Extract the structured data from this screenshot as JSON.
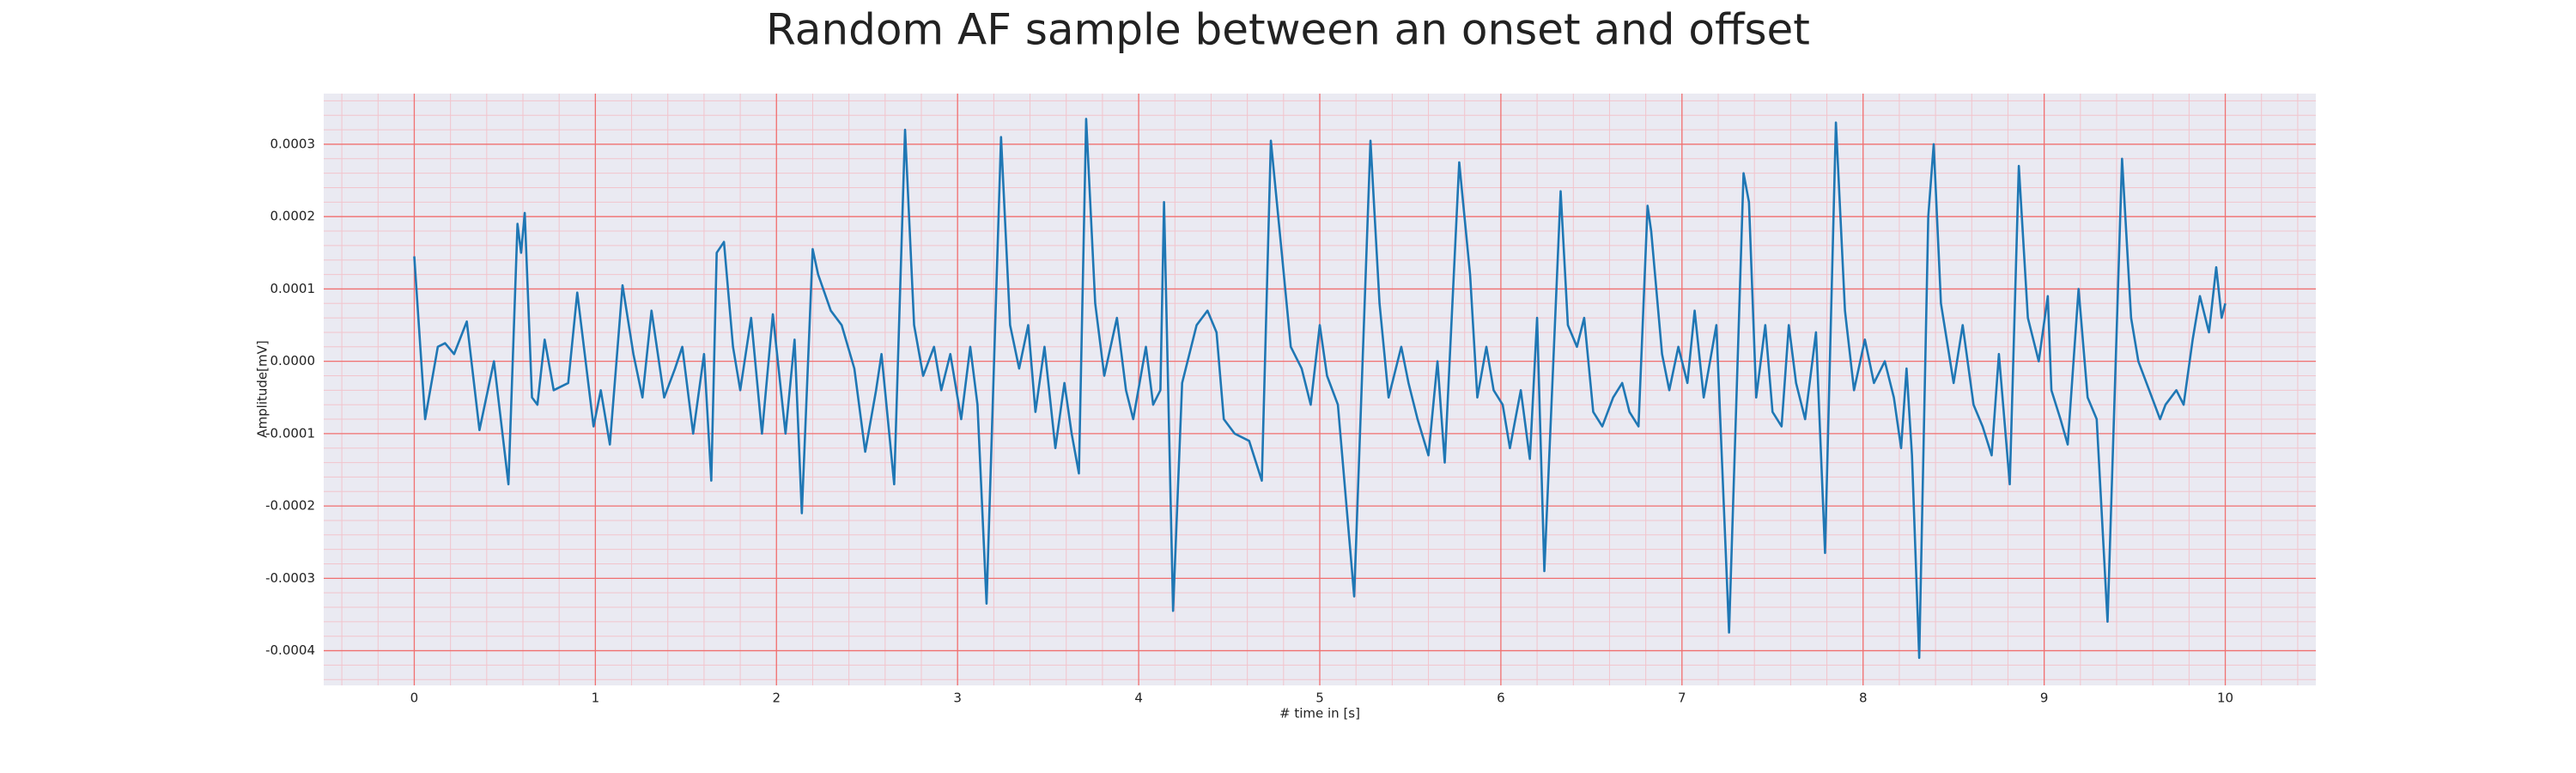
{
  "chart_data": {
    "type": "line",
    "title": "Random AF sample between an onset and offset",
    "xlabel": "# time in [s]",
    "ylabel": "Amplitude[mV]",
    "color": "#1f77b4",
    "background": "#eaeaf2",
    "grid": true,
    "grid_color": "#f07070",
    "minor_grid": true,
    "minor_grid_color": "#f2c4cc",
    "minor_divisions": 5,
    "xlim": [
      -0.5,
      10.5
    ],
    "ylim": [
      -0.000448,
      0.00037
    ],
    "xticks": [
      0,
      1,
      2,
      3,
      4,
      5,
      6,
      7,
      8,
      9,
      10
    ],
    "yticks": [
      -0.0004,
      -0.0003,
      -0.0002,
      -0.0001,
      {
        "value": 0,
        "label": "0.0000"
      },
      0.0001,
      0.0002,
      0.0003
    ],
    "x": [
      0.0,
      0.06,
      0.13,
      0.17,
      0.22,
      0.29,
      0.36,
      0.44,
      0.52,
      0.57,
      0.59,
      0.61,
      0.65,
      0.68,
      0.72,
      0.77,
      0.85,
      0.9,
      0.99,
      1.03,
      1.08,
      1.15,
      1.21,
      1.26,
      1.31,
      1.38,
      1.44,
      1.48,
      1.54,
      1.6,
      1.64,
      1.67,
      1.71,
      1.76,
      1.8,
      1.86,
      1.92,
      1.98,
      2.05,
      2.1,
      2.14,
      2.2,
      2.23,
      2.3,
      2.36,
      2.43,
      2.49,
      2.55,
      2.58,
      2.65,
      2.71,
      2.76,
      2.81,
      2.87,
      2.91,
      2.96,
      3.02,
      3.07,
      3.11,
      3.16,
      3.24,
      3.29,
      3.34,
      3.39,
      3.43,
      3.48,
      3.54,
      3.59,
      3.63,
      3.67,
      3.71,
      3.76,
      3.81,
      3.88,
      3.93,
      3.97,
      4.04,
      4.08,
      4.12,
      4.14,
      4.19,
      4.24,
      4.32,
      4.38,
      4.43,
      4.47,
      4.53,
      4.61,
      4.68,
      4.73,
      4.79,
      4.84,
      4.9,
      4.95,
      5.0,
      5.04,
      5.1,
      5.19,
      5.28,
      5.33,
      5.38,
      5.45,
      5.49,
      5.54,
      5.6,
      5.65,
      5.69,
      5.77,
      5.83,
      5.87,
      5.92,
      5.96,
      6.01,
      6.05,
      6.11,
      6.16,
      6.2,
      6.24,
      6.33,
      6.37,
      6.42,
      6.46,
      6.51,
      6.56,
      6.62,
      6.67,
      6.71,
      6.76,
      6.81,
      6.83,
      6.89,
      6.93,
      6.98,
      7.03,
      7.07,
      7.12,
      7.19,
      7.26,
      7.34,
      7.37,
      7.41,
      7.46,
      7.5,
      7.55,
      7.59,
      7.63,
      7.68,
      7.74,
      7.79,
      7.85,
      7.9,
      7.95,
      8.01,
      8.06,
      8.12,
      8.17,
      8.21,
      8.24,
      8.27,
      8.31,
      8.36,
      8.39,
      8.43,
      8.5,
      8.55,
      8.61,
      8.66,
      8.71,
      8.75,
      8.81,
      8.86,
      8.91,
      8.97,
      9.02,
      9.04,
      9.09,
      9.13,
      9.19,
      9.24,
      9.29,
      9.35,
      9.43,
      9.48,
      9.52,
      9.58,
      9.64,
      9.67,
      9.73,
      9.77,
      9.82,
      9.86,
      9.91,
      9.95,
      9.98,
      10.0
    ],
    "values": [
      0.000145,
      -8e-05,
      2e-05,
      2.5e-05,
      1e-05,
      5.5e-05,
      -9.5e-05,
      0,
      -0.00017,
      0.00019,
      0.00015,
      0.000205,
      -5e-05,
      -6e-05,
      3e-05,
      -4e-05,
      -3e-05,
      9.5e-05,
      -9e-05,
      -4e-05,
      -0.000115,
      0.000105,
      1e-05,
      -5e-05,
      7e-05,
      -5e-05,
      -1e-05,
      2e-05,
      -0.0001,
      1e-05,
      -0.000165,
      0.00015,
      0.000165,
      2e-05,
      -4e-05,
      6e-05,
      -0.0001,
      6.5e-05,
      -0.0001,
      3e-05,
      -0.00021,
      0.000155,
      0.00012,
      7e-05,
      5e-05,
      -1e-05,
      -0.000125,
      -4e-05,
      1e-05,
      -0.00017,
      0.00032,
      5e-05,
      -2e-05,
      2e-05,
      -4e-05,
      1e-05,
      -8e-05,
      2e-05,
      -6e-05,
      -0.000335,
      0.00031,
      5e-05,
      -1e-05,
      5e-05,
      -7e-05,
      2e-05,
      -0.00012,
      -3e-05,
      -0.0001,
      -0.000155,
      0.000335,
      8e-05,
      -2e-05,
      6e-05,
      -4e-05,
      -8e-05,
      2e-05,
      -6e-05,
      -4e-05,
      0.00022,
      -0.000345,
      -3e-05,
      5e-05,
      7e-05,
      4e-05,
      -8e-05,
      -0.0001,
      -0.00011,
      -0.000165,
      0.000305,
      0.00015,
      2e-05,
      -1e-05,
      -6e-05,
      5e-05,
      -2e-05,
      -6e-05,
      -0.000325,
      0.000305,
      8e-05,
      -5e-05,
      2e-05,
      -3e-05,
      -8e-05,
      -0.00013,
      0,
      -0.00014,
      0.000275,
      0.00012,
      -5e-05,
      2e-05,
      -4e-05,
      -6e-05,
      -0.00012,
      -4e-05,
      -0.000135,
      6e-05,
      -0.00029,
      0.000235,
      5e-05,
      2e-05,
      6e-05,
      -7e-05,
      -9e-05,
      -5e-05,
      -3e-05,
      -7e-05,
      -9e-05,
      0.000215,
      0.00018,
      1e-05,
      -4e-05,
      2e-05,
      -3e-05,
      7e-05,
      -5e-05,
      5e-05,
      -0.000375,
      0.00026,
      0.00022,
      -5e-05,
      5e-05,
      -7e-05,
      -9e-05,
      5e-05,
      -3e-05,
      -8e-05,
      4e-05,
      -0.000265,
      0.00033,
      7e-05,
      -4e-05,
      3e-05,
      -3e-05,
      0,
      -5e-05,
      -0.00012,
      -1e-05,
      -0.00013,
      -0.00041,
      0.0002,
      0.0003,
      8e-05,
      -3e-05,
      5e-05,
      -6e-05,
      -9e-05,
      -0.00013,
      1e-05,
      -0.00017,
      0.00027,
      6e-05,
      0,
      9e-05,
      -4e-05,
      -8e-05,
      -0.000115,
      0.0001,
      -5e-05,
      -8e-05,
      -0.00036,
      0.00028,
      6e-05,
      0,
      -4e-05,
      -8e-05,
      -6e-05,
      -4e-05,
      -6e-05,
      3e-05,
      9e-05,
      4e-05,
      0.00013,
      6e-05,
      8e-05
    ]
  }
}
